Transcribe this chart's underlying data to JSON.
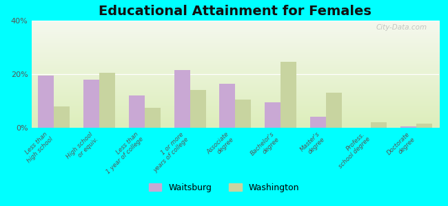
{
  "title": "Educational Attainment for Females",
  "categories": [
    "Less than\nhigh school",
    "High school\nor equiv.",
    "Less than\n1 year of college",
    "1 or more\nyears of college",
    "Associate\ndegree",
    "Bachelor's\ndegree",
    "Master's\ndegree",
    "Profess.\nschool degree",
    "Doctorate\ndegree"
  ],
  "waitsburg": [
    19.5,
    18.0,
    12.0,
    21.5,
    16.5,
    9.5,
    4.0,
    0.0,
    0.5
  ],
  "washington": [
    8.0,
    20.5,
    7.5,
    14.0,
    10.5,
    24.5,
    13.0,
    2.0,
    1.5
  ],
  "waitsburg_color": "#c9a8d4",
  "washington_color": "#c8d4a0",
  "ylim": [
    0,
    40
  ],
  "yticks": [
    0,
    20,
    40
  ],
  "ytick_labels": [
    "0%",
    "20%",
    "40%"
  ],
  "plot_bg_top": "#ddeebb",
  "plot_bg_bottom": "#f5f8ee",
  "outer_background": "#00ffff",
  "legend_waitsburg": "Waitsburg",
  "legend_washington": "Washington",
  "title_fontsize": 14,
  "bar_width": 0.35
}
